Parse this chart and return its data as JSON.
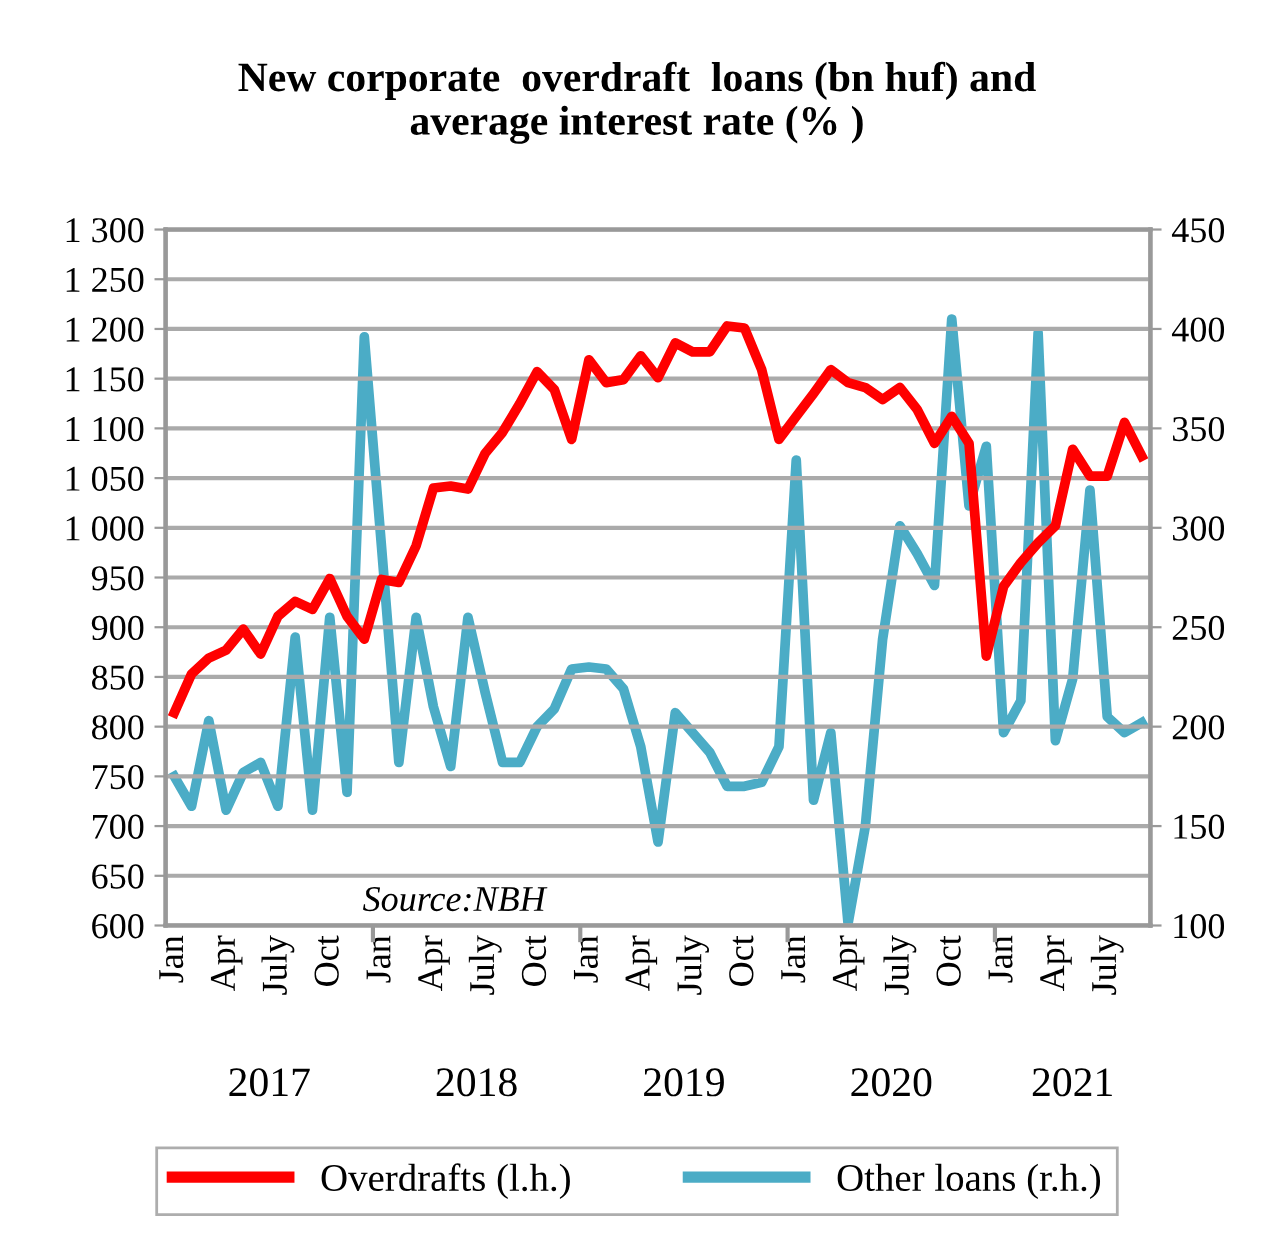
{
  "chart_data": {
    "type": "line",
    "title": "New corporate  overdraft  loans (bn huf) and\naverage interest rate (% )",
    "categories": [
      "Jan",
      null,
      null,
      "Apr",
      null,
      null,
      "July",
      null,
      null,
      "Oct",
      null,
      null,
      "Jan",
      null,
      null,
      "Apr",
      null,
      null,
      "July",
      null,
      null,
      "Oct",
      null,
      null,
      "Jan",
      null,
      null,
      "Apr",
      null,
      null,
      "July",
      null,
      null,
      "Oct",
      null,
      null,
      "Jan",
      null,
      null,
      "Apr",
      null,
      null,
      "July",
      null,
      null,
      "Oct",
      null,
      null,
      "Jan",
      null,
      null,
      "Apr",
      null,
      null,
      "July",
      null,
      null
    ],
    "series": [
      {
        "name": "Overdrafts (l.h.)",
        "color": "#ff0000",
        "values": [
          814,
          853,
          869,
          877,
          898,
          873,
          911,
          926,
          918,
          949,
          911,
          888,
          948,
          945,
          982,
          1040,
          1042,
          1039,
          1075,
          1096,
          1125,
          1157,
          1139,
          1089,
          1169,
          1146,
          1149,
          1173,
          1151,
          1186,
          1177,
          1177,
          1203,
          1201,
          1159,
          1089,
          1112,
          1135,
          1159,
          1146,
          1141,
          1129,
          1141,
          1119,
          1085,
          1112,
          1085,
          871,
          941,
          965,
          985,
          1002,
          1079,
          1052,
          1052,
          1106,
          1072
        ]
      },
      {
        "name": "Other loans (r.h.)",
        "color": "#4bacc6",
        "axis": "y2",
        "values": [
          175,
          160,
          203,
          158,
          177,
          182,
          160,
          245,
          158,
          255,
          167,
          396,
          290,
          182,
          255,
          210,
          180,
          255,
          217,
          182,
          182,
          200,
          209,
          229,
          230,
          229,
          219,
          190,
          142,
          207,
          197,
          187,
          170,
          170,
          172,
          190,
          334,
          163,
          197,
          101,
          150,
          244,
          301,
          287,
          271,
          405,
          311,
          341,
          197,
          213,
          398,
          193,
          224,
          319,
          205,
          197,
          202
        ]
      }
    ],
    "ylim": [
      600,
      1300
    ],
    "yticks": [
      600,
      650,
      700,
      750,
      800,
      850,
      900,
      950,
      {
        "value": 1000,
        "label": "1 000"
      },
      {
        "value": 1050,
        "label": "1 050"
      },
      {
        "value": 1100,
        "label": "1 100"
      },
      {
        "value": 1150,
        "label": "1 150"
      },
      {
        "value": 1200,
        "label": "1 200"
      },
      {
        "value": 1250,
        "label": "1 250"
      },
      {
        "value": 1300,
        "label": "1 300"
      }
    ],
    "y2lim": [
      100,
      450
    ],
    "y2ticks": [
      100,
      150,
      200,
      250,
      300,
      350,
      400,
      450
    ],
    "grid": "y",
    "legend": "bottom",
    "marker": "none",
    "line_style": "solid",
    "annotations": [
      "Source:NBH",
      "2017",
      "2018",
      "2019",
      "2020",
      "2021"
    ]
  }
}
